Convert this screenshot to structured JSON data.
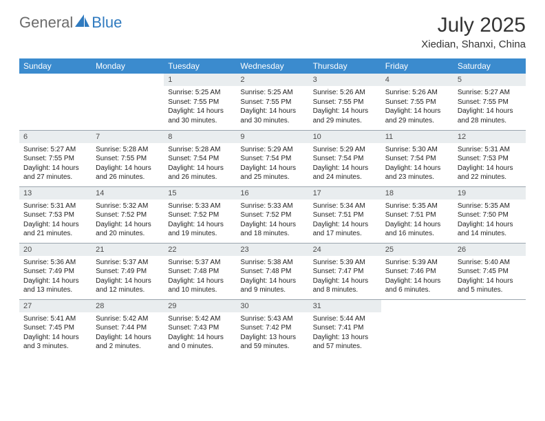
{
  "brand": {
    "part1": "General",
    "part2": "Blue"
  },
  "colors": {
    "brand_gray": "#6b6b6b",
    "brand_blue": "#2f7abf",
    "header_bg": "#3b8bce",
    "header_fg": "#ffffff",
    "daynum_bg": "#e9edef",
    "grid_line": "#9aa4ad",
    "text": "#222222"
  },
  "title": "July 2025",
  "location": "Xiedian, Shanxi, China",
  "weekdays": [
    "Sunday",
    "Monday",
    "Tuesday",
    "Wednesday",
    "Thursday",
    "Friday",
    "Saturday"
  ],
  "first_weekday_index": 2,
  "days": [
    {
      "n": 1,
      "sunrise": "5:25 AM",
      "sunset": "7:55 PM",
      "daylight": "14 hours and 30 minutes."
    },
    {
      "n": 2,
      "sunrise": "5:25 AM",
      "sunset": "7:55 PM",
      "daylight": "14 hours and 30 minutes."
    },
    {
      "n": 3,
      "sunrise": "5:26 AM",
      "sunset": "7:55 PM",
      "daylight": "14 hours and 29 minutes."
    },
    {
      "n": 4,
      "sunrise": "5:26 AM",
      "sunset": "7:55 PM",
      "daylight": "14 hours and 29 minutes."
    },
    {
      "n": 5,
      "sunrise": "5:27 AM",
      "sunset": "7:55 PM",
      "daylight": "14 hours and 28 minutes."
    },
    {
      "n": 6,
      "sunrise": "5:27 AM",
      "sunset": "7:55 PM",
      "daylight": "14 hours and 27 minutes."
    },
    {
      "n": 7,
      "sunrise": "5:28 AM",
      "sunset": "7:55 PM",
      "daylight": "14 hours and 26 minutes."
    },
    {
      "n": 8,
      "sunrise": "5:28 AM",
      "sunset": "7:54 PM",
      "daylight": "14 hours and 26 minutes."
    },
    {
      "n": 9,
      "sunrise": "5:29 AM",
      "sunset": "7:54 PM",
      "daylight": "14 hours and 25 minutes."
    },
    {
      "n": 10,
      "sunrise": "5:29 AM",
      "sunset": "7:54 PM",
      "daylight": "14 hours and 24 minutes."
    },
    {
      "n": 11,
      "sunrise": "5:30 AM",
      "sunset": "7:54 PM",
      "daylight": "14 hours and 23 minutes."
    },
    {
      "n": 12,
      "sunrise": "5:31 AM",
      "sunset": "7:53 PM",
      "daylight": "14 hours and 22 minutes."
    },
    {
      "n": 13,
      "sunrise": "5:31 AM",
      "sunset": "7:53 PM",
      "daylight": "14 hours and 21 minutes."
    },
    {
      "n": 14,
      "sunrise": "5:32 AM",
      "sunset": "7:52 PM",
      "daylight": "14 hours and 20 minutes."
    },
    {
      "n": 15,
      "sunrise": "5:33 AM",
      "sunset": "7:52 PM",
      "daylight": "14 hours and 19 minutes."
    },
    {
      "n": 16,
      "sunrise": "5:33 AM",
      "sunset": "7:52 PM",
      "daylight": "14 hours and 18 minutes."
    },
    {
      "n": 17,
      "sunrise": "5:34 AM",
      "sunset": "7:51 PM",
      "daylight": "14 hours and 17 minutes."
    },
    {
      "n": 18,
      "sunrise": "5:35 AM",
      "sunset": "7:51 PM",
      "daylight": "14 hours and 16 minutes."
    },
    {
      "n": 19,
      "sunrise": "5:35 AM",
      "sunset": "7:50 PM",
      "daylight": "14 hours and 14 minutes."
    },
    {
      "n": 20,
      "sunrise": "5:36 AM",
      "sunset": "7:49 PM",
      "daylight": "14 hours and 13 minutes."
    },
    {
      "n": 21,
      "sunrise": "5:37 AM",
      "sunset": "7:49 PM",
      "daylight": "14 hours and 12 minutes."
    },
    {
      "n": 22,
      "sunrise": "5:37 AM",
      "sunset": "7:48 PM",
      "daylight": "14 hours and 10 minutes."
    },
    {
      "n": 23,
      "sunrise": "5:38 AM",
      "sunset": "7:48 PM",
      "daylight": "14 hours and 9 minutes."
    },
    {
      "n": 24,
      "sunrise": "5:39 AM",
      "sunset": "7:47 PM",
      "daylight": "14 hours and 8 minutes."
    },
    {
      "n": 25,
      "sunrise": "5:39 AM",
      "sunset": "7:46 PM",
      "daylight": "14 hours and 6 minutes."
    },
    {
      "n": 26,
      "sunrise": "5:40 AM",
      "sunset": "7:45 PM",
      "daylight": "14 hours and 5 minutes."
    },
    {
      "n": 27,
      "sunrise": "5:41 AM",
      "sunset": "7:45 PM",
      "daylight": "14 hours and 3 minutes."
    },
    {
      "n": 28,
      "sunrise": "5:42 AM",
      "sunset": "7:44 PM",
      "daylight": "14 hours and 2 minutes."
    },
    {
      "n": 29,
      "sunrise": "5:42 AM",
      "sunset": "7:43 PM",
      "daylight": "14 hours and 0 minutes."
    },
    {
      "n": 30,
      "sunrise": "5:43 AM",
      "sunset": "7:42 PM",
      "daylight": "13 hours and 59 minutes."
    },
    {
      "n": 31,
      "sunrise": "5:44 AM",
      "sunset": "7:41 PM",
      "daylight": "13 hours and 57 minutes."
    }
  ],
  "labels": {
    "sunrise": "Sunrise: ",
    "sunset": "Sunset: ",
    "daylight": "Daylight: "
  }
}
